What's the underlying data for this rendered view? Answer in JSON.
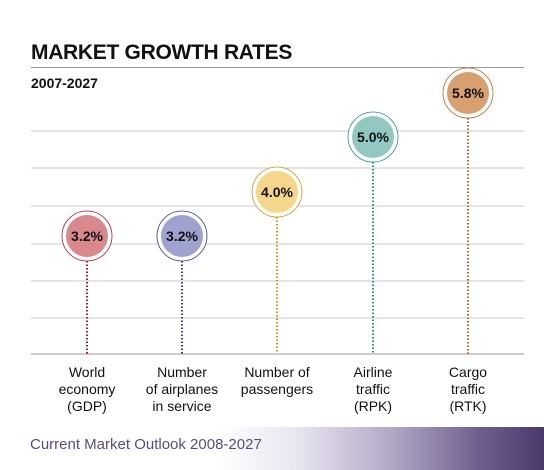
{
  "chart_data": {
    "type": "bubble-lollipop",
    "title": "MARKET GROWTH RATES",
    "subtitle": "2007-2027",
    "categories": [
      "World\neconomy\n(GDP)",
      "Number\nof airplanes\nin service",
      "Number of\npassengers",
      "Airline\ntraffic\n(RPK)",
      "Cargo\ntraffic\n(RTK)"
    ],
    "values": [
      3.2,
      3.2,
      4.0,
      5.0,
      5.8
    ],
    "value_labels": [
      "3.2%",
      "3.2%",
      "4.0%",
      "5.0%",
      "5.8%"
    ],
    "unit": "%",
    "ylim": [
      0,
      6
    ],
    "grid": true,
    "colors": [
      "#d9898e",
      "#9fa2cf",
      "#f5d68a",
      "#93c7c2",
      "#d8a070"
    ],
    "ring_colors": [
      "#a81e2d",
      "#3a3d8f",
      "#c79a1a",
      "#2a8f87",
      "#b06a2c"
    ]
  },
  "footer": {
    "text": "Current Market Outlook 2008-2027"
  }
}
